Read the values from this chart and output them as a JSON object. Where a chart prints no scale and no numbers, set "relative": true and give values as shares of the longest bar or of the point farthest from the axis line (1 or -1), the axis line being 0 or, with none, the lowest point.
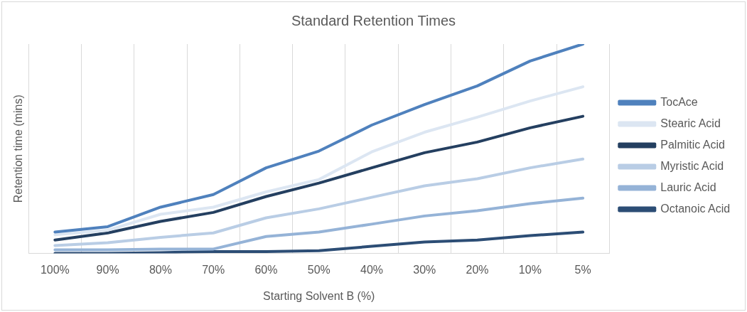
{
  "chart_data": {
    "type": "line",
    "title": "Standard Retention Times",
    "xlabel": "Starting Solvent B (%)",
    "ylabel": "Retention time (mins)",
    "relative": true,
    "grid": "x",
    "legend": "right",
    "marker": "none",
    "line_style": "solid",
    "categories": [
      "100%",
      "90%",
      "80%",
      "70%",
      "60%",
      "50%",
      "40%",
      "30%",
      "20%",
      "10%",
      "5%"
    ],
    "series": [
      {
        "name": "TocAce",
        "color": "#4f81bd",
        "values": [
          0.102,
          0.128,
          0.221,
          0.281,
          0.409,
          0.489,
          0.613,
          0.711,
          0.8,
          0.919,
          1
        ]
      },
      {
        "name": "Stearic Acid",
        "color": "#dce6f2",
        "values": [
          0.089,
          0.111,
          0.187,
          0.221,
          0.294,
          0.353,
          0.485,
          0.579,
          0.651,
          0.728,
          0.796
        ]
      },
      {
        "name": "Palmitic Acid",
        "color": "#243f60",
        "values": [
          0.064,
          0.098,
          0.153,
          0.196,
          0.272,
          0.336,
          0.409,
          0.481,
          0.532,
          0.6,
          0.655
        ]
      },
      {
        "name": "Myristic Acid",
        "color": "#b9cde5",
        "values": [
          0.038,
          0.051,
          0.077,
          0.098,
          0.17,
          0.213,
          0.268,
          0.323,
          0.357,
          0.409,
          0.451
        ]
      },
      {
        "name": "Lauric Acid",
        "color": "#95b3d7",
        "values": [
          0.017,
          0.017,
          0.021,
          0.021,
          0.081,
          0.102,
          0.14,
          0.179,
          0.204,
          0.238,
          0.264
        ]
      },
      {
        "name": "Octanoic Acid",
        "color": "#2c4d75",
        "values": [
          0,
          0,
          0.004,
          0.009,
          0.009,
          0.013,
          0.034,
          0.055,
          0.064,
          0.085,
          0.102
        ]
      }
    ]
  }
}
